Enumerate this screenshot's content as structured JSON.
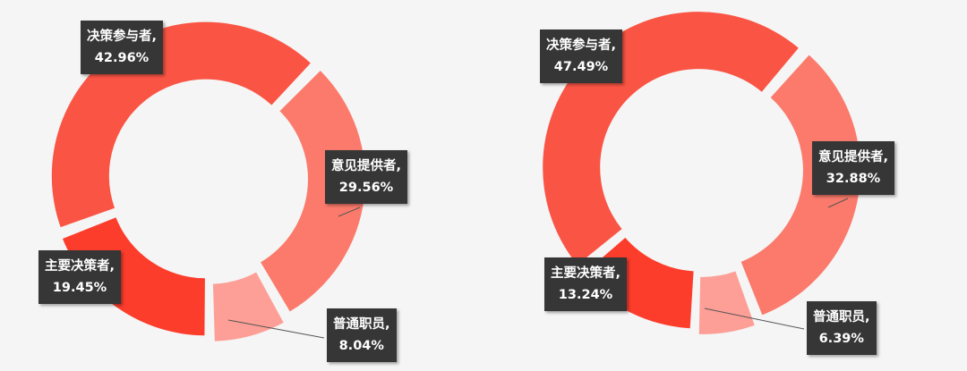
{
  "chart_data": [
    {
      "type": "pie",
      "donut": true,
      "categories": [
        "意见提供者",
        "普通职员",
        "主要决策者",
        "决策参与者"
      ],
      "values": [
        29.56,
        8.04,
        19.45,
        42.96
      ],
      "labels": [
        "意见提供者,",
        "普通职员,",
        "主要决策者,",
        "决策参与者,"
      ],
      "value_labels": [
        "29.56%",
        "8.04%",
        "19.45%",
        "42.96%"
      ],
      "colors": [
        "#fb7a6c",
        "#fd9f96",
        "#fc3d2c",
        "#fa5444"
      ]
    },
    {
      "type": "pie",
      "donut": true,
      "categories": [
        "意见提供者",
        "普通职员",
        "主要决策者",
        "决策参与者"
      ],
      "values": [
        32.88,
        6.39,
        13.24,
        47.49
      ],
      "labels": [
        "意见提供者,",
        "普通职员,",
        "主要决策者,",
        "决策参与者,"
      ],
      "value_labels": [
        "32.88%",
        "6.39%",
        "13.24%",
        "47.49%"
      ],
      "colors": [
        "#fb7a6c",
        "#fd9f96",
        "#fc3d2c",
        "#fa5444"
      ]
    }
  ]
}
